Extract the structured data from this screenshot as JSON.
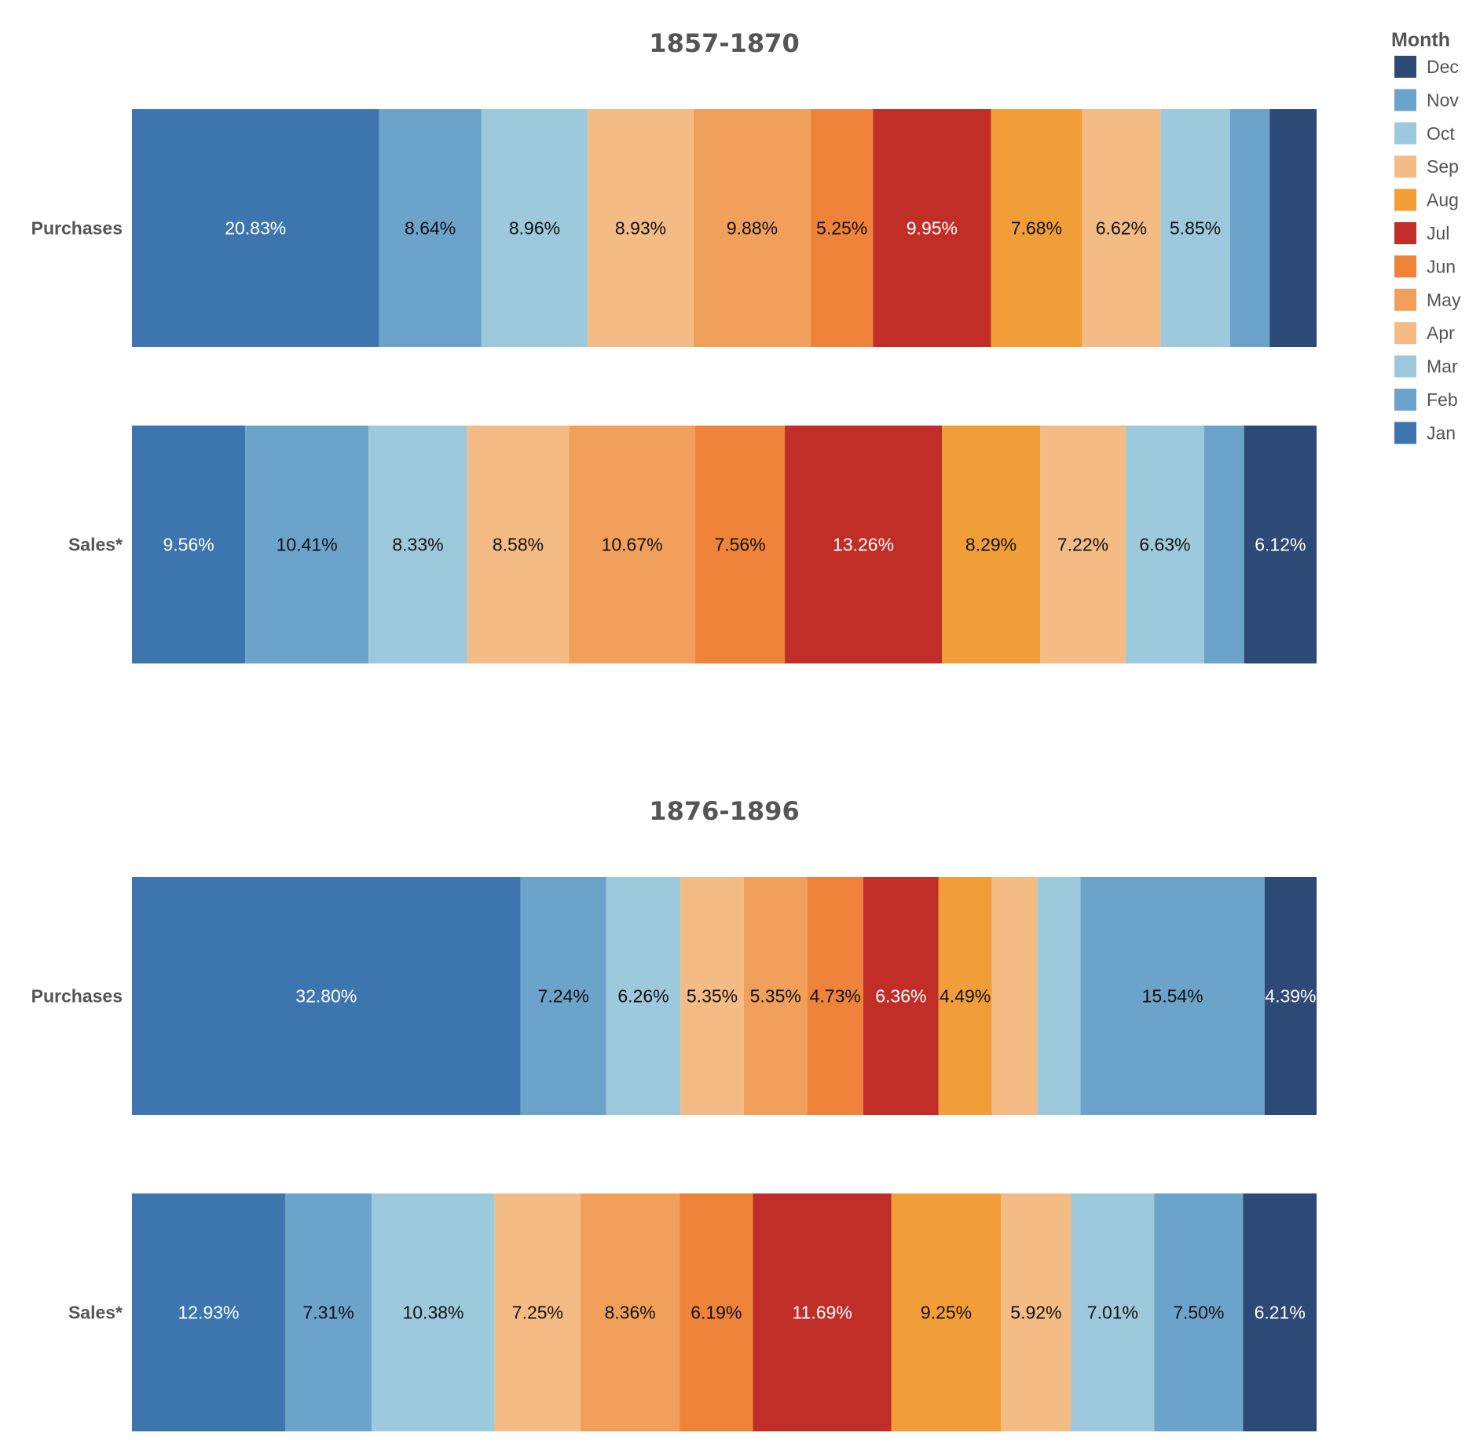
{
  "chart_data": {
    "type": "bar",
    "orientation": "horizontal",
    "stacked": "normalized-100",
    "legend": {
      "title": "Month",
      "placement": "top-right",
      "order": [
        "Dec",
        "Nov",
        "Oct",
        "Sep",
        "Aug",
        "Jul",
        "Jun",
        "May",
        "Apr",
        "Mar",
        "Feb",
        "Jan"
      ]
    },
    "month_colors": {
      "Jan": "#3D76AE",
      "Feb": "#6CA3CA",
      "Mar": "#9DC9DC",
      "Apr": "#F4BB84",
      "May": "#F0A05A",
      "Jun": "#EE8339",
      "Jul": "#C02E27",
      "Aug": "#F29E38",
      "Sep": "#F4BB84",
      "Oct": "#9DC9DC",
      "Nov": "#6CA3CA",
      "Dec": "#2C4A75"
    },
    "dark_text_color": "#111111",
    "light_text_color": "#ffffff",
    "dark_fill_months": [
      "Jan",
      "Jul",
      "Dec"
    ],
    "panels": [
      {
        "title": "1857-1870",
        "rows": [
          {
            "label": "Purchases",
            "segments": [
              {
                "month": "Jan",
                "value": 20.83,
                "label": "20.83%"
              },
              {
                "month": "Feb",
                "value": 8.64,
                "label": "8.64%"
              },
              {
                "month": "Mar",
                "value": 8.96,
                "label": "8.96%"
              },
              {
                "month": "Apr",
                "value": 8.93,
                "label": "8.93%"
              },
              {
                "month": "May",
                "value": 9.88,
                "label": "9.88%"
              },
              {
                "month": "Jun",
                "value": 5.25,
                "label": "5.25%"
              },
              {
                "month": "Jul",
                "value": 9.95,
                "label": "9.95%"
              },
              {
                "month": "Aug",
                "value": 7.68,
                "label": "7.68%"
              },
              {
                "month": "Sep",
                "value": 6.62,
                "label": "6.62%"
              },
              {
                "month": "Oct",
                "value": 5.85,
                "label": "5.85%"
              },
              {
                "month": "Nov",
                "value": 3.35,
                "label": ""
              },
              {
                "month": "Dec",
                "value": 3.96,
                "label": ""
              }
            ]
          },
          {
            "label": "Sales*",
            "segments": [
              {
                "month": "Jan",
                "value": 9.56,
                "label": "9.56%"
              },
              {
                "month": "Feb",
                "value": 10.41,
                "label": "10.41%"
              },
              {
                "month": "Mar",
                "value": 8.33,
                "label": "8.33%"
              },
              {
                "month": "Apr",
                "value": 8.58,
                "label": "8.58%"
              },
              {
                "month": "May",
                "value": 10.67,
                "label": "10.67%"
              },
              {
                "month": "Jun",
                "value": 7.56,
                "label": "7.56%"
              },
              {
                "month": "Jul",
                "value": 13.26,
                "label": "13.26%"
              },
              {
                "month": "Aug",
                "value": 8.29,
                "label": "8.29%"
              },
              {
                "month": "Sep",
                "value": 7.22,
                "label": "7.22%"
              },
              {
                "month": "Oct",
                "value": 6.63,
                "label": "6.63%"
              },
              {
                "month": "Nov",
                "value": 3.37,
                "label": ""
              },
              {
                "month": "Dec",
                "value": 6.12,
                "label": "6.12%"
              }
            ]
          }
        ]
      },
      {
        "title": "1876-1896",
        "rows": [
          {
            "label": "Purchases",
            "segments": [
              {
                "month": "Jan",
                "value": 32.8,
                "label": "32.80%"
              },
              {
                "month": "Feb",
                "value": 7.24,
                "label": "7.24%"
              },
              {
                "month": "Mar",
                "value": 6.26,
                "label": "6.26%"
              },
              {
                "month": "Apr",
                "value": 5.35,
                "label": "5.35%"
              },
              {
                "month": "May",
                "value": 5.35,
                "label": "5.35%"
              },
              {
                "month": "Jun",
                "value": 4.73,
                "label": "4.73%"
              },
              {
                "month": "Jul",
                "value": 6.36,
                "label": "6.36%"
              },
              {
                "month": "Aug",
                "value": 4.49,
                "label": "4.49%"
              },
              {
                "month": "Sep",
                "value": 3.85,
                "label": ""
              },
              {
                "month": "Oct",
                "value": 3.64,
                "label": ""
              },
              {
                "month": "Nov",
                "value": 15.54,
                "label": "15.54%"
              },
              {
                "month": "Dec",
                "value": 4.39,
                "label": "4.39%"
              }
            ]
          },
          {
            "label": "Sales*",
            "segments": [
              {
                "month": "Jan",
                "value": 12.93,
                "label": "12.93%"
              },
              {
                "month": "Feb",
                "value": 7.31,
                "label": "7.31%"
              },
              {
                "month": "Mar",
                "value": 10.38,
                "label": "10.38%"
              },
              {
                "month": "Apr",
                "value": 7.25,
                "label": "7.25%"
              },
              {
                "month": "May",
                "value": 8.36,
                "label": "8.36%"
              },
              {
                "month": "Jun",
                "value": 6.19,
                "label": "6.19%"
              },
              {
                "month": "Jul",
                "value": 11.69,
                "label": "11.69%"
              },
              {
                "month": "Aug",
                "value": 9.25,
                "label": "9.25%"
              },
              {
                "month": "Sep",
                "value": 5.92,
                "label": "5.92%"
              },
              {
                "month": "Oct",
                "value": 7.01,
                "label": "7.01%"
              },
              {
                "month": "Nov",
                "value": 7.5,
                "label": "7.50%"
              },
              {
                "month": "Dec",
                "value": 6.21,
                "label": "6.21%"
              }
            ]
          }
        ]
      }
    ]
  }
}
